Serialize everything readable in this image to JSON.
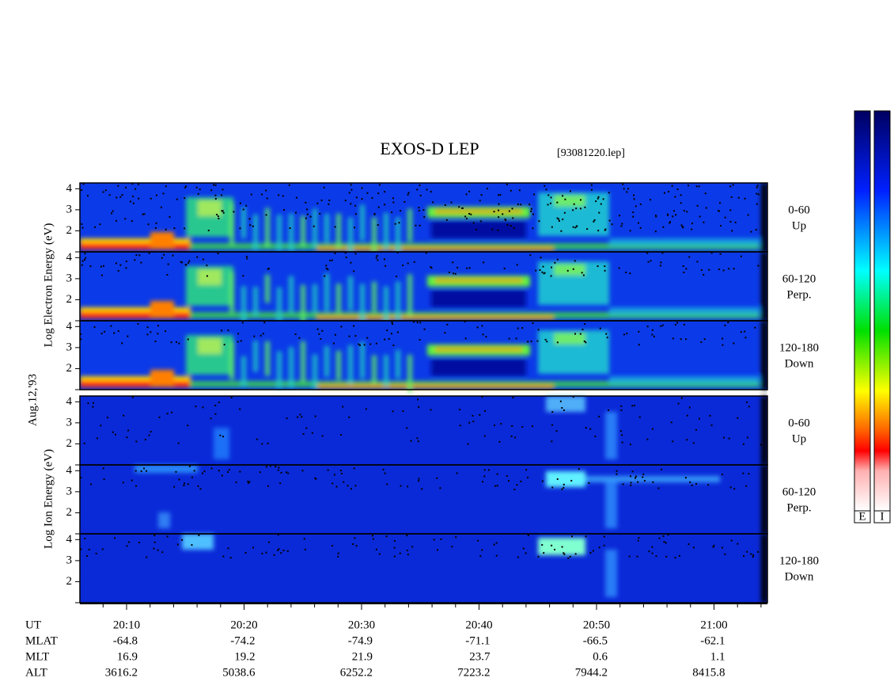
{
  "header": {
    "title": "EXOS-D LEP",
    "file": "[93081220.lep]"
  },
  "date": "Aug.12,'93",
  "groups": [
    {
      "axis_label": "Log Electron Energy (eV)"
    },
    {
      "axis_label": "Log Ion Energy (eV)"
    }
  ],
  "panels": [
    {
      "range": "0-60",
      "dir": "Up"
    },
    {
      "range": "60-120",
      "dir": "Perp."
    },
    {
      "range": "120-180",
      "dir": "Down"
    }
  ],
  "ylim": [
    1,
    4.2
  ],
  "yticks": [
    2,
    3,
    4
  ],
  "orbit": {
    "rows": [
      {
        "label": "UT",
        "values": [
          "20:10",
          "20:20",
          "20:30",
          "20:40",
          "20:50",
          "21:00"
        ]
      },
      {
        "label": "MLAT",
        "values": [
          "-64.8",
          "-74.2",
          "-74.9",
          "-71.1",
          "-66.5",
          "-62.1"
        ]
      },
      {
        "label": "MLT",
        "values": [
          "16.9",
          "19.2",
          "21.9",
          "23.7",
          "0.6",
          "1.1"
        ]
      },
      {
        "label": "ALT",
        "values": [
          "3616.2",
          "5038.6",
          "6252.2",
          "7223.2",
          "7944.2",
          "8415.8"
        ]
      }
    ]
  },
  "colorbar": {
    "labels": [
      "E",
      "I"
    ]
  }
}
